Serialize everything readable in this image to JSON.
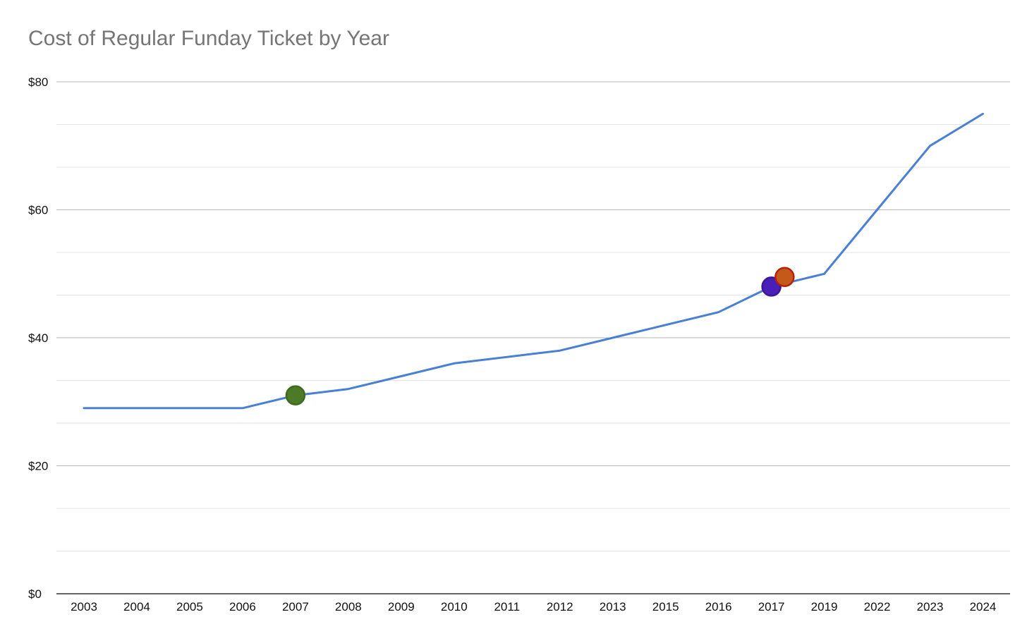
{
  "chart_data": {
    "type": "line",
    "title": "Cost of Regular Funday Ticket by Year",
    "xlabel": "",
    "ylabel": "",
    "categories": [
      "2003",
      "2004",
      "2005",
      "2006",
      "2007",
      "2008",
      "2009",
      "2010",
      "2011",
      "2012",
      "2013",
      "2015",
      "2016",
      "2017",
      "2019",
      "2022",
      "2023",
      "2024"
    ],
    "series": [
      {
        "color": "#4a7fd6",
        "values": [
          29,
          29,
          29,
          29,
          31,
          32,
          34,
          36,
          37,
          38,
          40,
          42,
          44,
          48,
          50,
          60,
          70,
          75
        ]
      }
    ],
    "highlight_points": [
      {
        "x": 2007,
        "y": 31,
        "color": "#4c7a26",
        "stroke": "#3f6a1e"
      },
      {
        "x": 2017,
        "y": 48,
        "color": "#4a1fb8",
        "stroke": "#3b169a"
      },
      {
        "x": 2017.5,
        "y": 49.5,
        "color": "#c4591a",
        "stroke": "#b5200d"
      }
    ],
    "y_ticks": [
      "$0",
      "$20",
      "$40",
      "$60",
      "$80"
    ],
    "y_tick_values": [
      0,
      20,
      40,
      60,
      80
    ],
    "ylim": [
      0,
      80
    ],
    "minor_grid_step": 6.667,
    "grid": true,
    "legend": "none",
    "colors": {
      "major_grid": "#b7b7b7",
      "minor_grid": "#e3e3e3",
      "baseline": "#333333",
      "title": "#757575"
    }
  }
}
